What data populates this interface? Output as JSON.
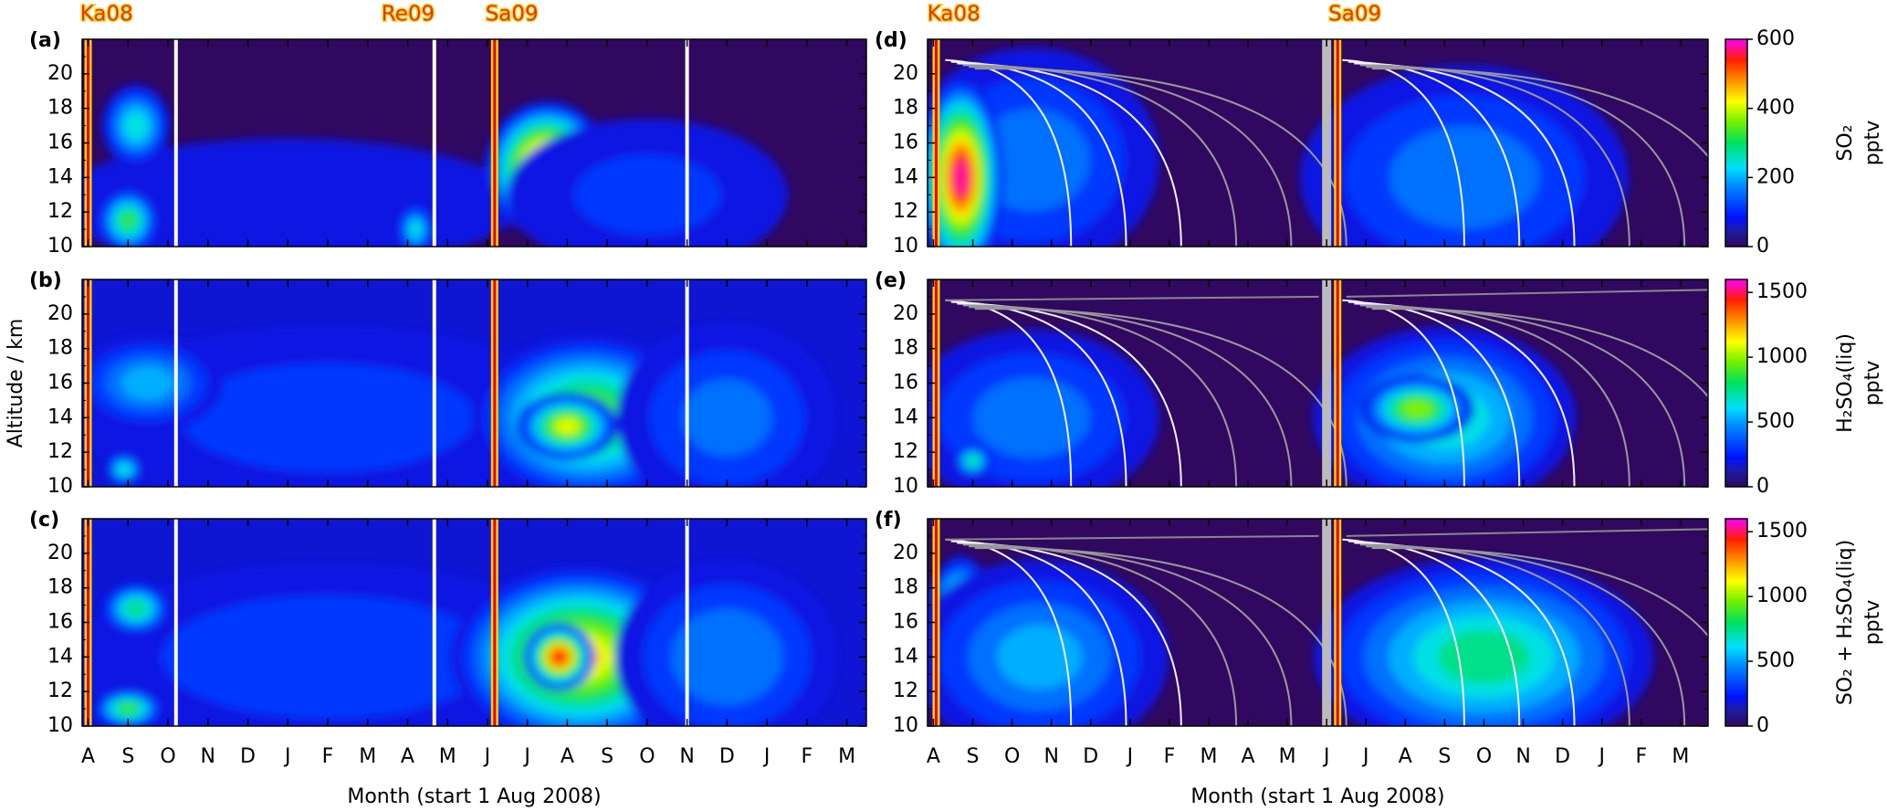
{
  "chart_data": [
    {
      "type": "contour",
      "label": "(a)",
      "ylim": [
        10,
        22
      ],
      "yticks": [
        10,
        12,
        14,
        16,
        18,
        20
      ],
      "events": [
        "Ka08",
        "Re09",
        "Sa09"
      ]
    },
    {
      "type": "contour",
      "label": "(b)",
      "ylim": [
        10,
        22
      ],
      "yticks": [
        10,
        12,
        14,
        16,
        18,
        20
      ],
      "ylabel": "Altitude / km"
    },
    {
      "type": "contour",
      "label": "(c)",
      "ylim": [
        10,
        22
      ],
      "yticks": [
        10,
        12,
        14,
        16,
        18,
        20
      ],
      "categories": [
        "A",
        "S",
        "O",
        "N",
        "D",
        "J",
        "F",
        "M",
        "A",
        "M",
        "J",
        "J",
        "A",
        "S",
        "O",
        "N",
        "D",
        "J",
        "F",
        "M"
      ],
      "xlabel": "Month (start 1 Aug 2008)"
    },
    {
      "type": "contour",
      "label": "(d)",
      "ylim": [
        10,
        22
      ],
      "yticks": [
        10,
        12,
        14,
        16,
        18,
        20
      ],
      "events": [
        "Ka08",
        "Sa09"
      ],
      "colorbar": {
        "label": [
          "SO₂",
          "pptv"
        ],
        "lim": [
          0,
          600
        ],
        "ticks": [
          0,
          200,
          400,
          600
        ]
      }
    },
    {
      "type": "contour",
      "label": "(e)",
      "ylim": [
        10,
        22
      ],
      "yticks": [
        10,
        12,
        14,
        16,
        18,
        20
      ],
      "colorbar": {
        "label": [
          "H₂SO₄(liq)",
          "pptv"
        ],
        "lim": [
          0,
          1600
        ],
        "ticks": [
          0,
          500,
          1000,
          1500
        ]
      }
    },
    {
      "type": "contour",
      "label": "(f)",
      "ylim": [
        10,
        22
      ],
      "yticks": [
        10,
        12,
        14,
        16,
        18,
        20
      ],
      "categories": [
        "A",
        "S",
        "O",
        "N",
        "D",
        "J",
        "F",
        "M",
        "A",
        "M",
        "J",
        "J",
        "A",
        "S",
        "O",
        "N",
        "D",
        "J",
        "F",
        "M"
      ],
      "xlabel": "Month (start 1 Aug 2008)",
      "colorbar": {
        "label": [
          "SO₂ + H₂SO₄(liq)",
          "pptv"
        ],
        "lim": [
          0,
          1600
        ],
        "ticks": [
          0,
          500,
          1000,
          1500
        ]
      }
    }
  ]
}
